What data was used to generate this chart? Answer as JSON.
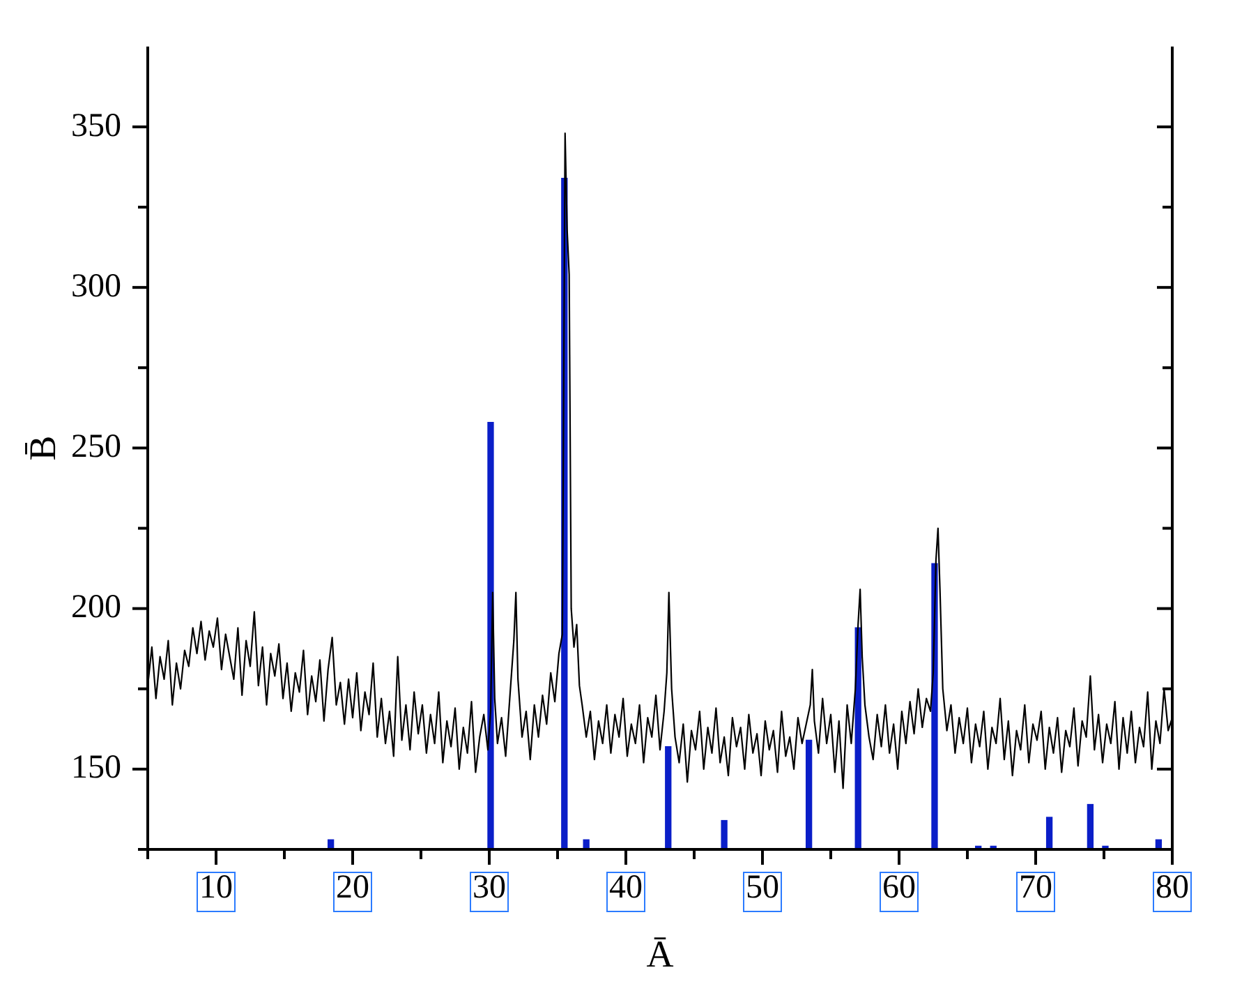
{
  "chart_data": {
    "type": "line",
    "xlabel": "Ā",
    "ylabel": "B̄",
    "xlim": [
      5,
      80
    ],
    "ylim": [
      125,
      375
    ],
    "xticks": [
      {
        "value": 5,
        "label": null
      },
      10,
      {
        "value": 15,
        "label": null
      },
      20,
      {
        "value": 25,
        "label": null
      },
      30,
      {
        "value": 35,
        "label": null
      },
      40,
      {
        "value": 45,
        "label": null
      },
      50,
      {
        "value": 55,
        "label": null
      },
      60,
      {
        "value": 65,
        "label": null
      },
      70,
      {
        "value": 75,
        "label": null
      },
      80
    ],
    "yticks": [
      {
        "value": 125,
        "label": null
      },
      150,
      {
        "value": 175,
        "label": null
      },
      200,
      {
        "value": 225,
        "label": null
      },
      250,
      {
        "value": 275,
        "label": null
      },
      300,
      {
        "value": 325,
        "label": null
      },
      350
    ],
    "grid": false,
    "legend": false,
    "marker": "none",
    "line_style": "solid",
    "series": [
      {
        "color": "#000000",
        "x": [
          5.0,
          5.3,
          5.6,
          5.9,
          6.2,
          6.5,
          6.8,
          7.1,
          7.4,
          7.7,
          8.0,
          8.3,
          8.6,
          8.9,
          9.2,
          9.5,
          9.8,
          10.1,
          10.4,
          10.7,
          11.0,
          11.3,
          11.6,
          11.9,
          12.2,
          12.5,
          12.8,
          13.1,
          13.4,
          13.7,
          14.0,
          14.3,
          14.6,
          14.9,
          15.2,
          15.5,
          15.8,
          16.1,
          16.4,
          16.7,
          17.0,
          17.3,
          17.6,
          17.9,
          18.2,
          18.5,
          18.8,
          19.1,
          19.4,
          19.7,
          20.0,
          20.3,
          20.6,
          20.9,
          21.2,
          21.5,
          21.8,
          22.1,
          22.4,
          22.7,
          23.0,
          23.3,
          23.6,
          23.9,
          24.2,
          24.5,
          24.8,
          25.1,
          25.4,
          25.7,
          26.0,
          26.3,
          26.6,
          26.9,
          27.2,
          27.5,
          27.8,
          28.1,
          28.4,
          28.7,
          29.0,
          29.3,
          29.6,
          29.9,
          30.1,
          30.25,
          30.4,
          30.6,
          30.9,
          31.2,
          31.5,
          31.8,
          31.95,
          32.1,
          32.4,
          32.7,
          33.0,
          33.3,
          33.6,
          33.9,
          34.2,
          34.5,
          34.8,
          35.1,
          35.35,
          35.55,
          35.7,
          35.85,
          36.0,
          36.2,
          36.4,
          36.6,
          36.8,
          37.1,
          37.4,
          37.7,
          38.0,
          38.3,
          38.6,
          38.9,
          39.2,
          39.5,
          39.8,
          40.1,
          40.4,
          40.7,
          41.0,
          41.3,
          41.6,
          41.9,
          42.2,
          42.5,
          42.8,
          43.0,
          43.15,
          43.35,
          43.6,
          43.9,
          44.2,
          44.5,
          44.8,
          45.1,
          45.4,
          45.7,
          46.0,
          46.3,
          46.6,
          46.9,
          47.2,
          47.5,
          47.8,
          48.1,
          48.4,
          48.7,
          49.0,
          49.3,
          49.6,
          49.9,
          50.2,
          50.5,
          50.8,
          51.1,
          51.4,
          51.7,
          52.0,
          52.3,
          52.6,
          52.9,
          53.2,
          53.5,
          53.65,
          53.8,
          54.1,
          54.4,
          54.7,
          55.0,
          55.3,
          55.6,
          55.9,
          56.2,
          56.5,
          56.8,
          57.0,
          57.15,
          57.3,
          57.5,
          57.8,
          58.1,
          58.4,
          58.7,
          59.0,
          59.3,
          59.6,
          59.9,
          60.2,
          60.5,
          60.8,
          61.1,
          61.4,
          61.7,
          62.0,
          62.3,
          62.5,
          62.7,
          62.85,
          63.0,
          63.2,
          63.5,
          63.8,
          64.1,
          64.4,
          64.7,
          65.0,
          65.3,
          65.6,
          65.9,
          66.2,
          66.5,
          66.8,
          67.1,
          67.4,
          67.7,
          68.0,
          68.3,
          68.6,
          68.9,
          69.2,
          69.5,
          69.8,
          70.1,
          70.4,
          70.7,
          71.0,
          71.3,
          71.6,
          71.9,
          72.2,
          72.5,
          72.8,
          73.1,
          73.4,
          73.7,
          74.0,
          74.3,
          74.6,
          74.9,
          75.2,
          75.5,
          75.8,
          76.1,
          76.4,
          76.7,
          77.0,
          77.3,
          77.6,
          77.9,
          78.2,
          78.5,
          78.8,
          79.1,
          79.4,
          79.7,
          80.0
        ],
        "values": [
          176,
          188,
          172,
          185,
          178,
          190,
          170,
          183,
          175,
          187,
          182,
          194,
          186,
          196,
          184,
          193,
          188,
          197,
          181,
          192,
          185,
          178,
          194,
          173,
          190,
          182,
          199,
          176,
          188,
          170,
          186,
          179,
          189,
          172,
          183,
          168,
          180,
          174,
          187,
          167,
          179,
          171,
          184,
          165,
          181,
          191,
          170,
          177,
          164,
          178,
          166,
          180,
          162,
          174,
          167,
          183,
          160,
          172,
          158,
          168,
          154,
          185,
          159,
          170,
          156,
          174,
          161,
          170,
          155,
          167,
          158,
          174,
          152,
          165,
          157,
          169,
          150,
          163,
          155,
          171,
          149,
          160,
          167,
          156,
          168,
          205,
          172,
          158,
          166,
          154,
          172,
          190,
          205,
          178,
          160,
          168,
          153,
          170,
          160,
          173,
          164,
          180,
          171,
          186,
          192,
          348,
          318,
          304,
          200,
          188,
          195,
          176,
          170,
          160,
          168,
          153,
          165,
          158,
          170,
          155,
          167,
          160,
          172,
          154,
          164,
          158,
          170,
          152,
          166,
          160,
          173,
          156,
          168,
          180,
          205,
          175,
          160,
          152,
          164,
          146,
          162,
          156,
          168,
          150,
          163,
          155,
          169,
          152,
          160,
          148,
          166,
          157,
          163,
          150,
          167,
          155,
          161,
          148,
          165,
          156,
          162,
          149,
          168,
          154,
          160,
          150,
          166,
          158,
          164,
          170,
          181,
          165,
          155,
          172,
          158,
          167,
          149,
          165,
          144,
          170,
          158,
          175,
          195,
          206,
          185,
          170,
          160,
          153,
          167,
          157,
          170,
          155,
          164,
          150,
          168,
          158,
          171,
          161,
          175,
          163,
          172,
          168,
          180,
          215,
          225,
          205,
          175,
          162,
          170,
          155,
          166,
          158,
          169,
          152,
          164,
          157,
          168,
          150,
          163,
          158,
          172,
          153,
          165,
          148,
          162,
          156,
          170,
          152,
          164,
          159,
          168,
          150,
          163,
          155,
          166,
          149,
          162,
          157,
          169,
          151,
          165,
          160,
          179,
          156,
          167,
          152,
          164,
          158,
          171,
          150,
          166,
          155,
          168,
          152,
          163,
          157,
          174,
          150,
          165,
          158,
          175,
          162,
          166
        ]
      },
      {
        "type": "bar",
        "color": "#0a1ec8",
        "x": [
          18.4,
          30.1,
          35.5,
          37.1,
          43.1,
          47.2,
          53.4,
          57.0,
          62.6,
          65.8,
          66.9,
          71.0,
          74.0,
          75.1,
          79.0
        ],
        "values": [
          128,
          258,
          334,
          128,
          157,
          134,
          159,
          194,
          214,
          126,
          126,
          135,
          139,
          126,
          128
        ]
      }
    ]
  }
}
